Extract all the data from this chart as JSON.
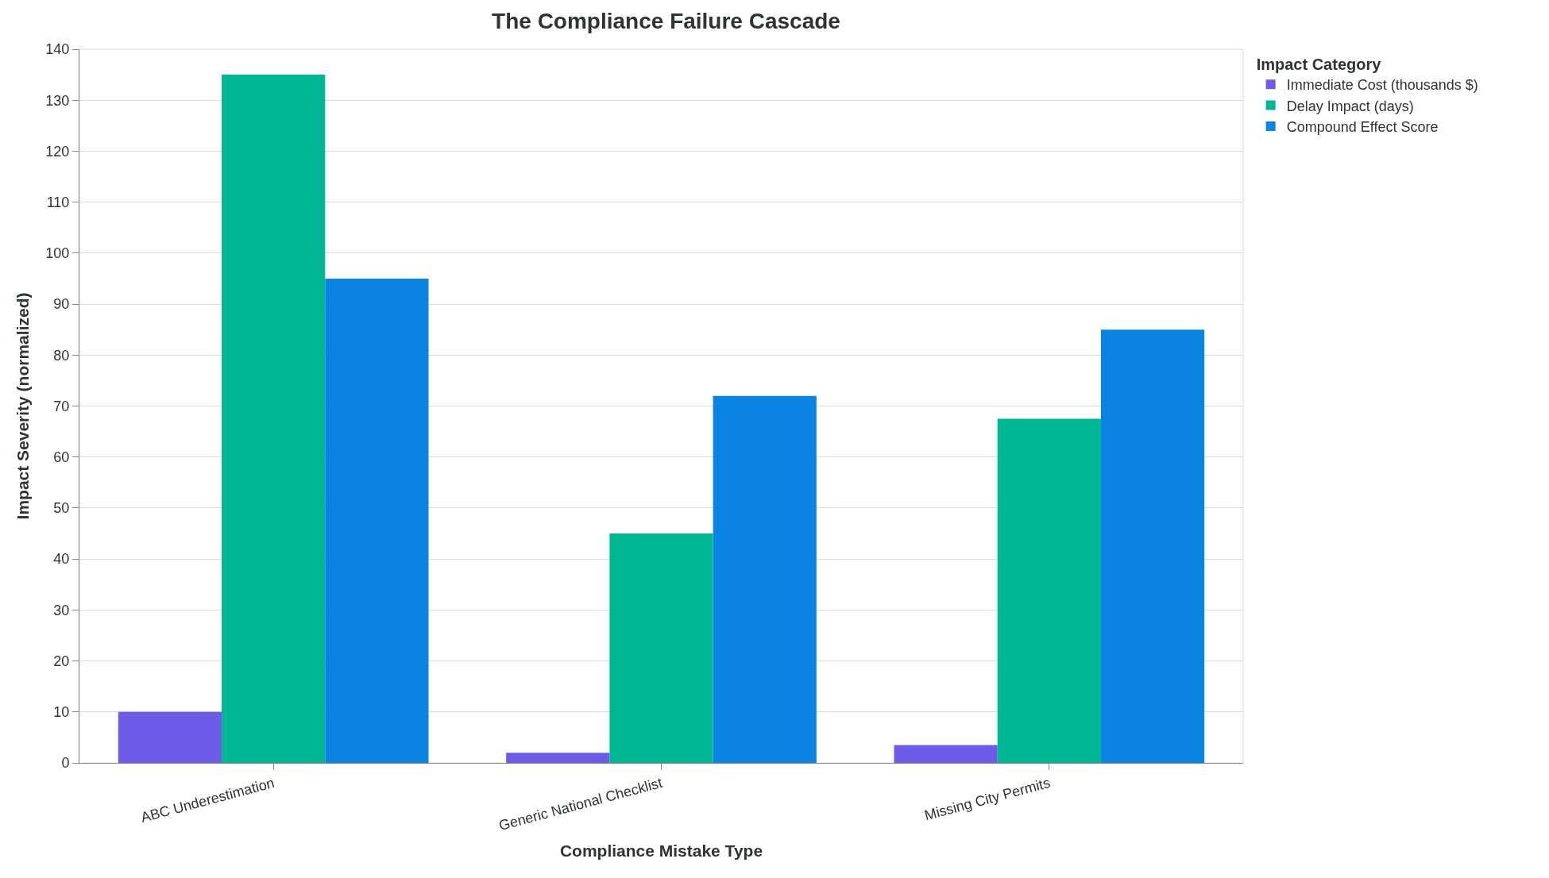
{
  "chart_data": {
    "type": "bar",
    "title": "The Compliance Failure Cascade",
    "xlabel": "Compliance Mistake Type",
    "ylabel": "Impact Severity (normalized)",
    "legend_title": "Impact Category",
    "categories": [
      "ABC Underestimation",
      "Generic National Checklist",
      "Missing City Permits"
    ],
    "series": [
      {
        "name": "Immediate Cost (thousands $)",
        "color": "#6c5ce7",
        "values": [
          10,
          2,
          3.5
        ]
      },
      {
        "name": "Delay Impact (days)",
        "color": "#00b894",
        "values": [
          135,
          45,
          67.5
        ]
      },
      {
        "name": "Compound Effect Score",
        "color": "#0984e3",
        "values": [
          95,
          72,
          85
        ]
      }
    ],
    "ylim": [
      0,
      140
    ],
    "yticks": [
      0,
      10,
      20,
      30,
      40,
      50,
      60,
      70,
      80,
      90,
      100,
      110,
      120,
      130,
      140
    ],
    "grid": "y",
    "legend": "top right"
  }
}
